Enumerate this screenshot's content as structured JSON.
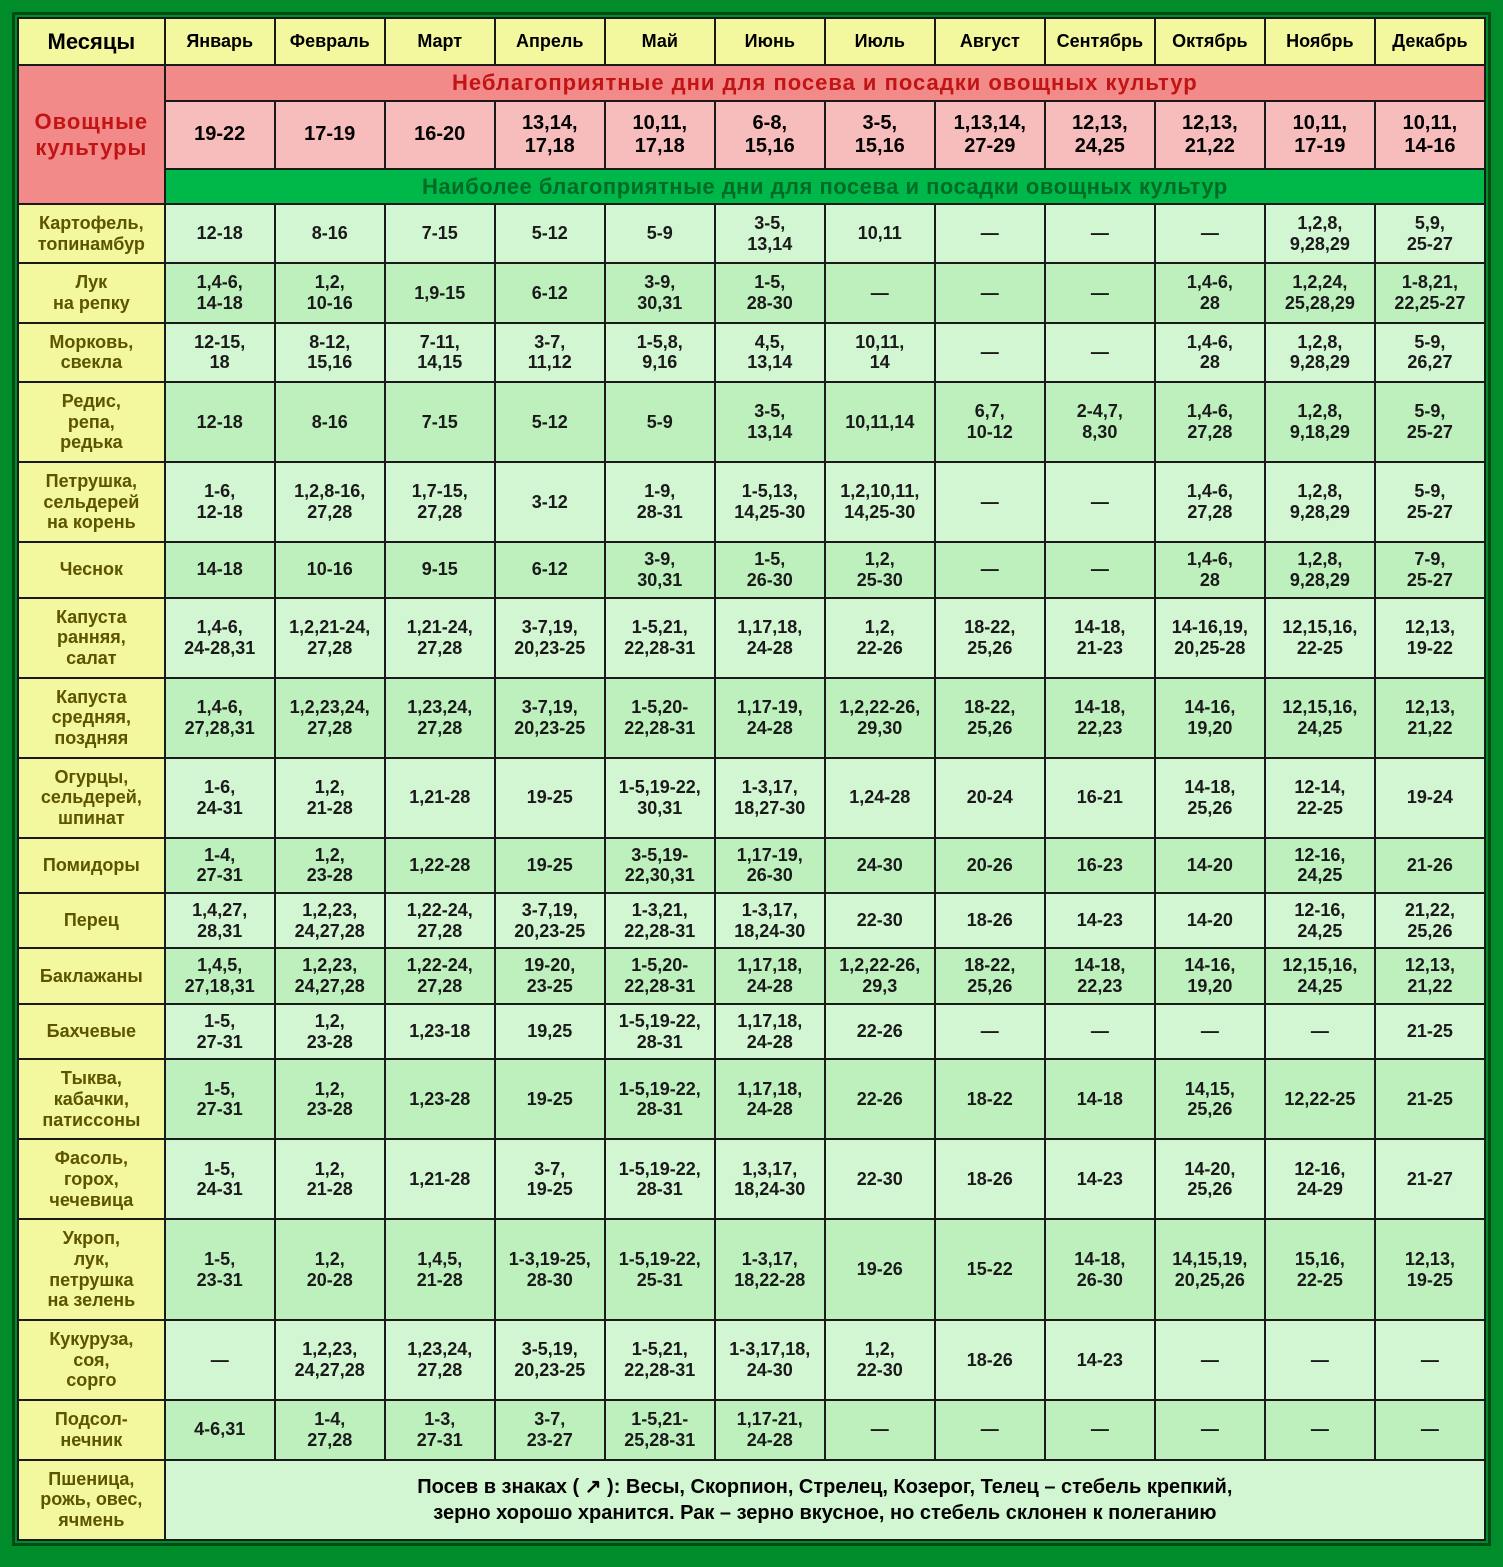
{
  "header": {
    "corner": "Месяцы",
    "months": [
      "Январь",
      "Февраль",
      "Март",
      "Апрель",
      "Май",
      "Июнь",
      "Июль",
      "Август",
      "Сентябрь",
      "Октябрь",
      "Ноябрь",
      "Декабрь"
    ]
  },
  "sidehead": "Овощные культуры",
  "unfav": {
    "banner": "Неблагоприятные дни для посева и посадки овощных культур",
    "values": [
      "19-22",
      "17-19",
      "16-20",
      "13,14, 17,18",
      "10,11, 17,18",
      "6-8, 15,16",
      "3-5, 15,16",
      "1,13,14, 27-29",
      "12,13, 24,25",
      "12,13, 21,22",
      "10,11, 17-19",
      "10,11, 14-16"
    ]
  },
  "fav_banner": "Наиболее благоприятные дни для посева и посадки овощных культур",
  "rows": [
    {
      "name": "Картофель, топинамбур",
      "v": [
        "12-18",
        "8-16",
        "7-15",
        "5-12",
        "5-9",
        "3-5, 13,14",
        "10,11",
        "—",
        "—",
        "—",
        "1,2,8, 9,28,29",
        "5,9, 25-27"
      ]
    },
    {
      "name": "Лук на репку",
      "v": [
        "1,4-6, 14-18",
        "1,2, 10-16",
        "1,9-15",
        "6-12",
        "3-9, 30,31",
        "1-5, 28-30",
        "—",
        "—",
        "—",
        "1,4-6, 28",
        "1,2,24, 25,28,29",
        "1-8,21, 22,25-27"
      ]
    },
    {
      "name": "Морковь, свекла",
      "v": [
        "12-15, 18",
        "8-12, 15,16",
        "7-11, 14,15",
        "3-7, 11,12",
        "1-5,8, 9,16",
        "4,5, 13,14",
        "10,11, 14",
        "—",
        "—",
        "1,4-6, 28",
        "1,2,8, 9,28,29",
        "5-9, 26,27"
      ]
    },
    {
      "name": "Редис, репа, редька",
      "v": [
        "12-18",
        "8-16",
        "7-15",
        "5-12",
        "5-9",
        "3-5, 13,14",
        "10,11,14",
        "6,7, 10-12",
        "2-4,7, 8,30",
        "1,4-6, 27,28",
        "1,2,8, 9,18,29",
        "5-9, 25-27"
      ]
    },
    {
      "name": "Петрушка, сельдерей на корень",
      "v": [
        "1-6, 12-18",
        "1,2,8-16, 27,28",
        "1,7-15, 27,28",
        "3-12",
        "1-9, 28-31",
        "1-5,13, 14,25-30",
        "1,2,10,11, 14,25-30",
        "—",
        "—",
        "1,4-6, 27,28",
        "1,2,8, 9,28,29",
        "5-9, 25-27"
      ]
    },
    {
      "name": "Чеснок",
      "v": [
        "14-18",
        "10-16",
        "9-15",
        "6-12",
        "3-9, 30,31",
        "1-5, 26-30",
        "1,2, 25-30",
        "—",
        "—",
        "1,4-6, 28",
        "1,2,8, 9,28,29",
        "7-9, 25-27"
      ]
    },
    {
      "name": "Капуста ранняя, салат",
      "v": [
        "1,4-6, 24-28,31",
        "1,2,21-24, 27,28",
        "1,21-24, 27,28",
        "3-7,19, 20,23-25",
        "1-5,21, 22,28-31",
        "1,17,18, 24-28",
        "1,2, 22-26",
        "18-22, 25,26",
        "14-18, 21-23",
        "14-16,19, 20,25-28",
        "12,15,16, 22-25",
        "12,13, 19-22"
      ]
    },
    {
      "name": "Капуста средняя, поздняя",
      "v": [
        "1,4-6, 27,28,31",
        "1,2,23,24, 27,28",
        "1,23,24, 27,28",
        "3-7,19, 20,23-25",
        "1-5,20- 22,28-31",
        "1,17-19, 24-28",
        "1,2,22-26, 29,30",
        "18-22, 25,26",
        "14-18, 22,23",
        "14-16, 19,20",
        "12,15,16, 24,25",
        "12,13, 21,22"
      ]
    },
    {
      "name": "Огурцы, сельдерей, шпинат",
      "v": [
        "1-6, 24-31",
        "1,2, 21-28",
        "1,21-28",
        "19-25",
        "1-5,19-22, 30,31",
        "1-3,17, 18,27-30",
        "1,24-28",
        "20-24",
        "16-21",
        "14-18, 25,26",
        "12-14, 22-25",
        "19-24"
      ]
    },
    {
      "name": "Помидоры",
      "v": [
        "1-4, 27-31",
        "1,2, 23-28",
        "1,22-28",
        "19-25",
        "3-5,19- 22,30,31",
        "1,17-19, 26-30",
        "24-30",
        "20-26",
        "16-23",
        "14-20",
        "12-16, 24,25",
        "21-26"
      ]
    },
    {
      "name": "Перец",
      "v": [
        "1,4,27, 28,31",
        "1,2,23, 24,27,28",
        "1,22-24, 27,28",
        "3-7,19, 20,23-25",
        "1-3,21, 22,28-31",
        "1-3,17, 18,24-30",
        "22-30",
        "18-26",
        "14-23",
        "14-20",
        "12-16, 24,25",
        "21,22, 25,26"
      ]
    },
    {
      "name": "Баклажаны",
      "v": [
        "1,4,5, 27,18,31",
        "1,2,23, 24,27,28",
        "1,22-24, 27,28",
        "19-20, 23-25",
        "1-5,20- 22,28-31",
        "1,17,18, 24-28",
        "1,2,22-26, 29,3",
        "18-22, 25,26",
        "14-18, 22,23",
        "14-16, 19,20",
        "12,15,16, 24,25",
        "12,13, 21,22"
      ]
    },
    {
      "name": "Бахчевые",
      "v": [
        "1-5, 27-31",
        "1,2, 23-28",
        "1,23-18",
        "19,25",
        "1-5,19-22, 28-31",
        "1,17,18, 24-28",
        "22-26",
        "—",
        "—",
        "—",
        "—",
        "21-25"
      ]
    },
    {
      "name": "Тыква, кабачки, патиссоны",
      "v": [
        "1-5, 27-31",
        "1,2, 23-28",
        "1,23-28",
        "19-25",
        "1-5,19-22, 28-31",
        "1,17,18, 24-28",
        "22-26",
        "18-22",
        "14-18",
        "14,15, 25,26",
        "12,22-25",
        "21-25"
      ]
    },
    {
      "name": "Фасоль, горох, чечевица",
      "v": [
        "1-5, 24-31",
        "1,2, 21-28",
        "1,21-28",
        "3-7, 19-25",
        "1-5,19-22, 28-31",
        "1,3,17, 18,24-30",
        "22-30",
        "18-26",
        "14-23",
        "14-20, 25,26",
        "12-16, 24-29",
        "21-27"
      ]
    },
    {
      "name": "Укроп, лук, петрушка на зелень",
      "v": [
        "1-5, 23-31",
        "1,2, 20-28",
        "1,4,5, 21-28",
        "1-3,19-25, 28-30",
        "1-5,19-22, 25-31",
        "1-3,17, 18,22-28",
        "19-26",
        "15-22",
        "14-18, 26-30",
        "14,15,19, 20,25,26",
        "15,16, 22-25",
        "12,13, 19-25"
      ]
    },
    {
      "name": "Кукуруза, соя, сорго",
      "v": [
        "—",
        "1,2,23, 24,27,28",
        "1,23,24, 27,28",
        "3-5,19, 20,23-25",
        "1-5,21, 22,28-31",
        "1-3,17,18, 24-30",
        "1,2, 22-30",
        "18-26",
        "14-23",
        "—",
        "—",
        "—"
      ]
    },
    {
      "name": "Подсол- нечник",
      "v": [
        "4-6,31",
        "1-4, 27,28",
        "1-3, 27-31",
        "3-7, 23-27",
        "1-5,21- 25,28-31",
        "1,17-21, 24-28",
        "—",
        "—",
        "—",
        "—",
        "—",
        "—"
      ]
    }
  ],
  "footer": {
    "rowhead": "Пшеница, рожь, овес, ячмень",
    "text1": "Посев в знаках ( ↗ ): Весы, Скорпион, Стрелец, Козерог, Телец – стебель крепкий,",
    "text2": "зерно хорошо хранится. Рак – зерно вкусное, но стебель склонен к полеганию"
  },
  "colors": {
    "frame": "#008c2a",
    "border": "#004d14",
    "header_bg": "#f3f79e",
    "unfav_banner_bg": "#f38a8a",
    "unfav_banner_fg": "#c21414",
    "unfav_row_bg": "#f7bcbc",
    "fav_banner_bg": "#00b84a",
    "fav_banner_fg": "#006b26",
    "row_even_bg": "#d2f5d2",
    "row_odd_bg": "#bdf0bd",
    "cell_border": "#1a1a1a"
  }
}
